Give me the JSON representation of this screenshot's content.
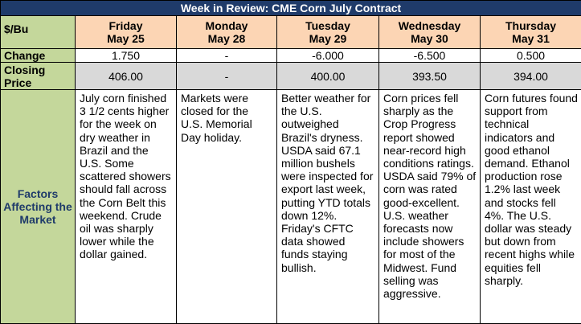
{
  "title": "Week in Review: CME Corn July Contract",
  "unit_label": "$/Bu",
  "days": [
    {
      "day": "Friday",
      "date": "May 25",
      "change": "1.750",
      "closing": "406.00",
      "factors": "July corn finished 3 1/2 cents higher for the week on dry weather in Brazil and the U.S. Some scattered showers should fall across the Corn Belt this weekend. Crude oil was sharply lower while the dollar gained."
    },
    {
      "day": "Monday",
      "date": "May 28",
      "change": "-",
      "closing": "-",
      "factors": "Markets were closed for the U.S. Memorial Day holiday."
    },
    {
      "day": "Tuesday",
      "date": "May 29",
      "change": "-6.000",
      "closing": "400.00",
      "factors": "Better weather for the U.S. outweighed Brazil's dryness. USDA said 67.1 million bushels were inspected for export last week, putting YTD totals down 12%. Friday's CFTC data showed funds staying bullish."
    },
    {
      "day": "Wednesday",
      "date": "May 30",
      "change": "-6.500",
      "closing": "393.50",
      "factors": "Corn prices fell sharply as the Crop Progress report showed near-record high conditions ratings. USDA said 79% of corn was rated good-excellent. U.S. weather forecasts now include showers for most of the Midwest. Fund selling was aggressive."
    },
    {
      "day": "Thursday",
      "date": "May 31",
      "change": "0.500",
      "closing": "394.00",
      "factors": "Corn futures found support from technical indicators and good ethanol demand. Ethanol production rose 1.2% last week and stocks fell 4%. The U.S. dollar was steady but down from recent highs while equities fell sharply."
    }
  ],
  "row_labels": {
    "change": "Change",
    "closing": "Closing Price",
    "factors": "Factors Affecting the Market"
  }
}
